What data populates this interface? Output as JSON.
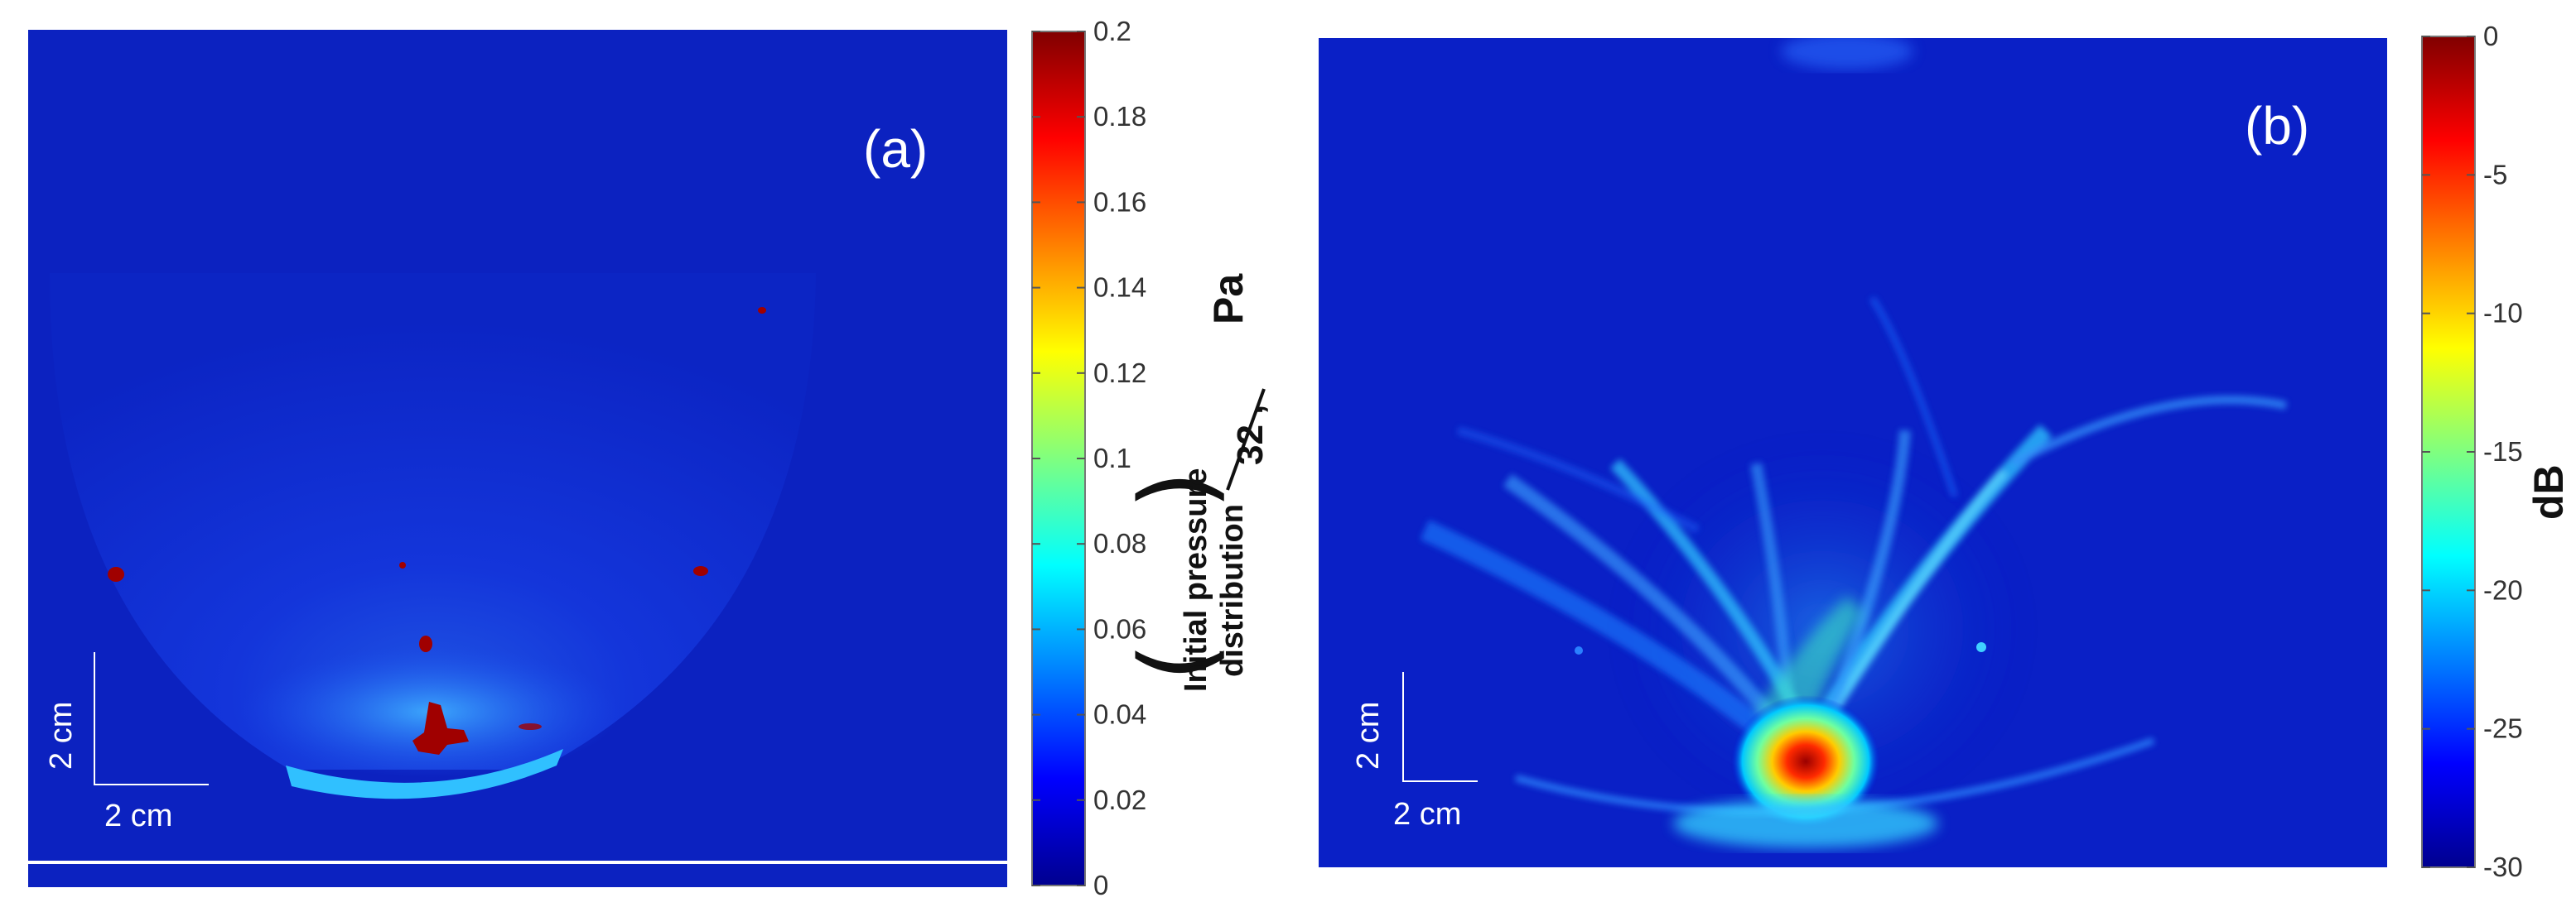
{
  "chart_data": [
    {
      "type": "heatmap",
      "panel_label": "(a)",
      "scale_bar": {
        "vertical": "2 cm",
        "horizontal": "2 cm"
      },
      "colorbar": {
        "range": [
          0,
          0.2
        ],
        "ticks": [
          "0.2",
          "0.18",
          "0.16",
          "0.14",
          "0.12",
          "0.1",
          "0.08",
          "0.06",
          "0.04",
          "0.02",
          "0"
        ],
        "label": {
          "line1": "Initial pressure",
          "line2": "distribution",
          "divisor": "32 ,",
          "unit": "Pa"
        }
      }
    },
    {
      "type": "heatmap",
      "panel_label": "(b)",
      "scale_bar": {
        "vertical": "2 cm",
        "horizontal": "2 cm"
      },
      "colorbar": {
        "range": [
          -30,
          0
        ],
        "ticks": [
          "0",
          "-5",
          "-10",
          "-15",
          "-20",
          "-25",
          "-30"
        ],
        "label": "dB"
      }
    }
  ]
}
